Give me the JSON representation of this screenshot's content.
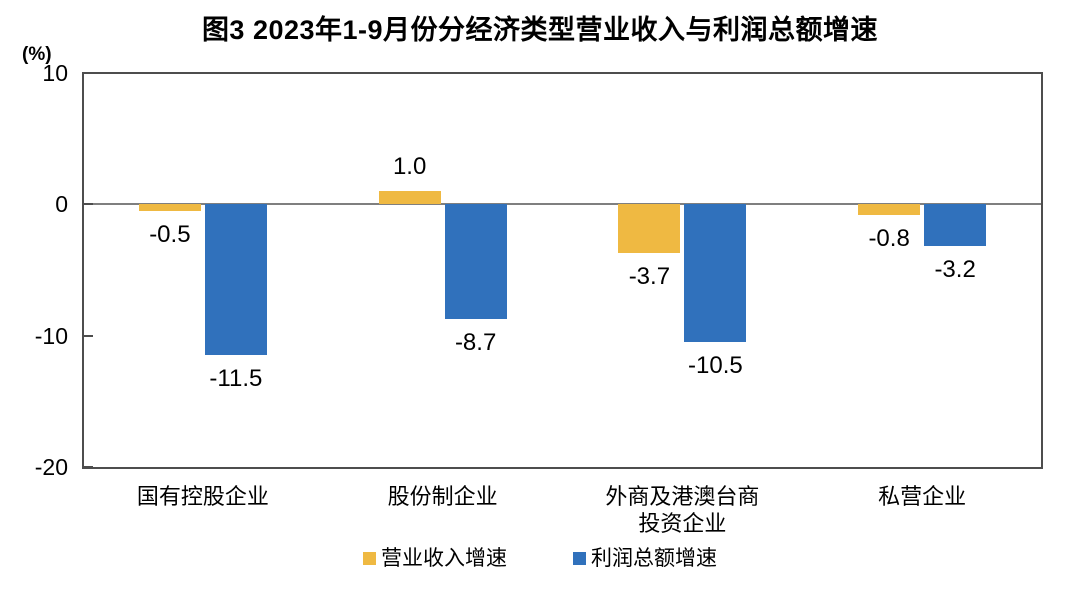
{
  "chart_data": {
    "type": "bar",
    "title": "图3  2023年1-9月份分经济类型营业收入与利润总额增速",
    "ylabel_unit": "(%)",
    "categories": [
      "国有控股企业",
      "股份制企业",
      "外商及港澳台商\n投资企业",
      "私营企业"
    ],
    "series": [
      {
        "name": "营业收入增速",
        "color": "#EFB942",
        "values": [
          -0.5,
          1.0,
          -3.7,
          -0.8
        ]
      },
      {
        "name": "利润总额增速",
        "color": "#3071BC",
        "values": [
          -11.5,
          -8.7,
          -10.5,
          -3.2
        ]
      }
    ],
    "ylim": [
      -20,
      10
    ],
    "yticks": [
      10,
      0,
      -10,
      -20
    ],
    "grid": false,
    "legend_position": "bottom",
    "value_labels": true,
    "value_label_format": "one_decimal",
    "colors": {
      "frame": "#4D4D4D",
      "zero_line": "#7F7F7F",
      "text": "#000000"
    }
  }
}
